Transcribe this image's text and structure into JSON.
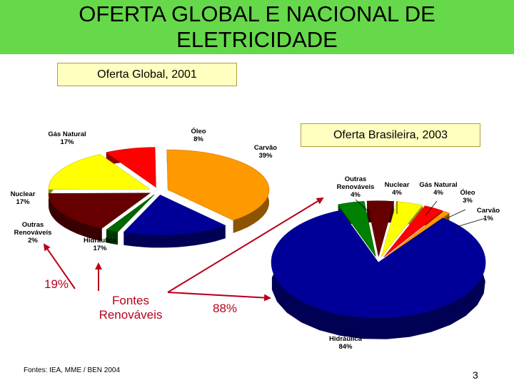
{
  "slide": {
    "title_line1": "OFERTA GLOBAL E NACIONAL DE",
    "title_line2": "ELETRICIDADE",
    "source": "Fontes: IEA,  MME / BEN 2004",
    "page_number": "3",
    "fontes_label_line1": "Fontes",
    "fontes_label_line2": "Renováveis",
    "global_renewable_pct": "19%",
    "brazil_renewable_pct": "88%",
    "colors": {
      "title_band": "#66d94a",
      "box_fill": "#ffffc0",
      "accent_red": "#b8001a"
    }
  },
  "chart_data": [
    {
      "type": "pie",
      "title": "Oferta Global, 2001",
      "categories": [
        "Carvão",
        "Hidráulica",
        "Outras Renováveis",
        "Nuclear",
        "Gás Natural",
        "Óleo"
      ],
      "values": [
        39,
        17,
        2,
        17,
        17,
        8
      ],
      "labels": [
        "Carvão\n39%",
        "Hidráulica\n17%",
        "Outras\nRenováveis\n2%",
        "Nuclear\n17%",
        "Gás Natural\n17%",
        "Óleo\n8%"
      ],
      "colors": [
        "#ff9900",
        "#000099",
        "#006600",
        "#660000",
        "#ffff00",
        "#ff0000"
      ]
    },
    {
      "type": "pie",
      "title": "Oferta Brasileira, 2003",
      "categories": [
        "Outras Renováveis",
        "Nuclear",
        "Gás Natural",
        "Óleo",
        "Carvão",
        "Hidráulica"
      ],
      "values": [
        4,
        4,
        4,
        3,
        1,
        84
      ],
      "labels": [
        "Outras\nRenováveis\n4%",
        "Nuclear\n4%",
        "Gás Natural\n4%",
        "Óleo\n3%",
        "Carvão\n1%",
        "Hidráulica\n84%"
      ],
      "colors": [
        "#008000",
        "#660000",
        "#ffff00",
        "#ff0000",
        "#ff9900",
        "#000099"
      ]
    }
  ]
}
